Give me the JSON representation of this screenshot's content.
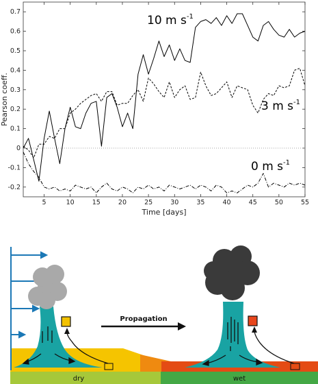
{
  "chart_data": {
    "type": "line",
    "xlabel": "Time [days]",
    "ylabel": "Pearson coeff.",
    "xlim": [
      1,
      55
    ],
    "ylim": [
      -0.25,
      0.75
    ],
    "xticks": [
      5,
      10,
      15,
      20,
      25,
      30,
      35,
      40,
      45,
      50,
      55
    ],
    "yticks": [
      -0.2,
      -0.1,
      0,
      0.1,
      0.2,
      0.3,
      0.4,
      0.5,
      0.6,
      0.7
    ],
    "zero_line": true,
    "grid": false,
    "x": [
      1,
      2,
      3,
      4,
      5,
      6,
      7,
      8,
      9,
      10,
      11,
      12,
      13,
      14,
      15,
      16,
      17,
      18,
      19,
      20,
      21,
      22,
      23,
      24,
      25,
      26,
      27,
      28,
      29,
      30,
      31,
      32,
      33,
      34,
      35,
      36,
      37,
      38,
      39,
      40,
      41,
      42,
      43,
      44,
      45,
      46,
      47,
      48,
      49,
      50,
      51,
      52,
      53,
      54,
      55
    ],
    "series": [
      {
        "name": "",
        "label_text": "10 m s",
        "label_sup": "-1",
        "style": "solid",
        "values": [
          0.0,
          0.05,
          -0.06,
          -0.17,
          0.05,
          0.19,
          0.05,
          -0.08,
          0.1,
          0.21,
          0.11,
          0.1,
          0.18,
          0.23,
          0.24,
          0.01,
          0.26,
          0.28,
          0.21,
          0.11,
          0.18,
          0.1,
          0.38,
          0.48,
          0.38,
          0.46,
          0.55,
          0.47,
          0.53,
          0.45,
          0.51,
          0.45,
          0.44,
          0.62,
          0.65,
          0.66,
          0.64,
          0.67,
          0.63,
          0.68,
          0.64,
          0.69,
          0.69,
          0.63,
          0.57,
          0.55,
          0.63,
          0.65,
          0.61,
          0.58,
          0.57,
          0.61,
          0.57,
          0.59,
          0.6
        ]
      },
      {
        "name": "",
        "label_text": "3 m s",
        "label_sup": "-1",
        "style": "dashed",
        "values": [
          0.01,
          -0.01,
          -0.05,
          0.02,
          0.02,
          0.06,
          0.05,
          0.1,
          0.1,
          0.18,
          0.2,
          0.23,
          0.25,
          0.27,
          0.28,
          0.24,
          0.29,
          0.29,
          0.22,
          0.23,
          0.23,
          0.27,
          0.3,
          0.24,
          0.36,
          0.33,
          0.29,
          0.26,
          0.34,
          0.26,
          0.3,
          0.32,
          0.25,
          0.26,
          0.39,
          0.32,
          0.27,
          0.28,
          0.31,
          0.34,
          0.26,
          0.32,
          0.31,
          0.3,
          0.22,
          0.18,
          0.25,
          0.28,
          0.27,
          0.32,
          0.31,
          0.32,
          0.4,
          0.41,
          0.32
        ]
      },
      {
        "name": "",
        "label_text": "0 m s",
        "label_sup": "-1",
        "style": "dashdot",
        "values": [
          -0.02,
          -0.08,
          -0.12,
          -0.15,
          -0.2,
          -0.21,
          -0.2,
          -0.22,
          -0.21,
          -0.22,
          -0.19,
          -0.2,
          -0.21,
          -0.2,
          -0.23,
          -0.2,
          -0.18,
          -0.21,
          -0.22,
          -0.2,
          -0.21,
          -0.23,
          -0.2,
          -0.21,
          -0.19,
          -0.21,
          -0.2,
          -0.22,
          -0.19,
          -0.2,
          -0.21,
          -0.2,
          -0.19,
          -0.21,
          -0.19,
          -0.2,
          -0.22,
          -0.19,
          -0.2,
          -0.23,
          -0.22,
          -0.23,
          -0.21,
          -0.19,
          -0.2,
          -0.18,
          -0.13,
          -0.2,
          -0.18,
          -0.19,
          -0.2,
          -0.18,
          -0.19,
          -0.18,
          -0.19
        ]
      }
    ]
  },
  "diagram": {
    "arrow_label": "Propagation",
    "left_ground_label": "dry",
    "right_ground_label": "wet",
    "colors": {
      "wind_arrow": "#1b78b6",
      "plume": "#19a3a3",
      "cloud_light": "#a9a9a9",
      "cloud_dark": "#3a3a3a",
      "dry_soil": "#f5c400",
      "wet_soil": "#e44b14",
      "ground_left": "#a6c83a",
      "ground_right": "#44a845",
      "box_dry": "#f2c100",
      "box_wet": "#e8461c"
    }
  }
}
